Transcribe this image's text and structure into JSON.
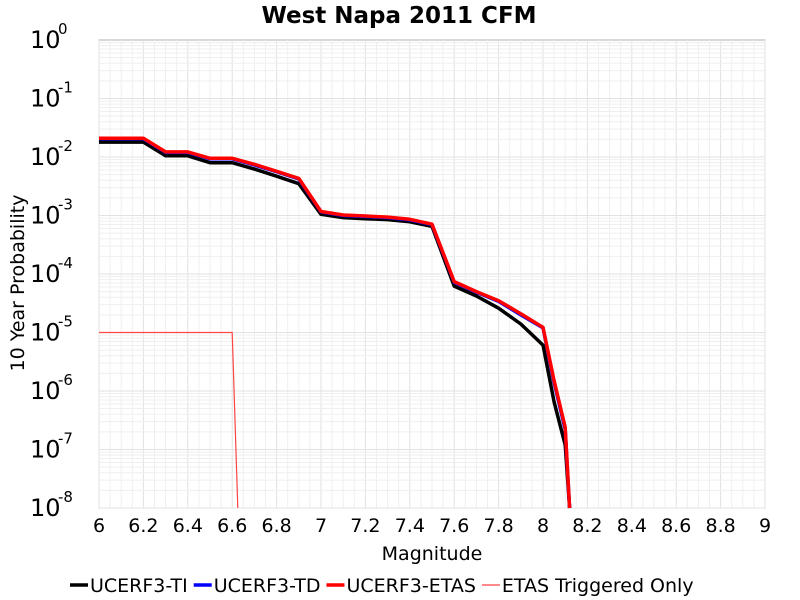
{
  "chart_data": {
    "type": "line",
    "title": "West Napa 2011 CFM",
    "xlabel": "Magnitude",
    "ylabel": "10 Year Probability",
    "x_range": [
      6,
      9
    ],
    "y_range": [
      1e-08,
      1
    ],
    "y_scale": "log",
    "grid": true,
    "legend_position": "bottom",
    "x_ticks": [
      "6",
      "6.2",
      "6.4",
      "6.6",
      "6.8",
      "7",
      "7.2",
      "7.4",
      "7.6",
      "7.8",
      "8",
      "8.2",
      "8.4",
      "8.6",
      "8.8",
      "9"
    ],
    "y_ticks": [
      {
        "base": "10",
        "exp": "0"
      },
      {
        "base": "10",
        "exp": "-1"
      },
      {
        "base": "10",
        "exp": "-2"
      },
      {
        "base": "10",
        "exp": "-3"
      },
      {
        "base": "10",
        "exp": "-4"
      },
      {
        "base": "10",
        "exp": "-5"
      },
      {
        "base": "10",
        "exp": "-6"
      },
      {
        "base": "10",
        "exp": "-7"
      },
      {
        "base": "10",
        "exp": "-8"
      }
    ],
    "series": [
      {
        "name": "UCERF3-TI",
        "color": "#000000",
        "points": [
          [
            6.0,
            0.018
          ],
          [
            6.1,
            0.018
          ],
          [
            6.2,
            0.018
          ],
          [
            6.3,
            0.0105
          ],
          [
            6.4,
            0.0105
          ],
          [
            6.5,
            0.008
          ],
          [
            6.6,
            0.008
          ],
          [
            6.7,
            0.0062
          ],
          [
            6.8,
            0.0047
          ],
          [
            6.9,
            0.0035
          ],
          [
            7.0,
            0.00105
          ],
          [
            7.1,
            0.00092
          ],
          [
            7.2,
            0.00088
          ],
          [
            7.3,
            0.00085
          ],
          [
            7.4,
            0.00078
          ],
          [
            7.5,
            0.00065
          ],
          [
            7.6,
            6.2e-05
          ],
          [
            7.7,
            4.2e-05
          ],
          [
            7.8,
            2.6e-05
          ],
          [
            7.9,
            1.4e-05
          ],
          [
            8.0,
            6.1e-06
          ],
          [
            8.05,
            6.5e-07
          ],
          [
            8.1,
            1.2e-07
          ],
          [
            8.12,
            1e-08
          ]
        ]
      },
      {
        "name": "UCERF3-TD",
        "color": "#0000ff",
        "points": [
          [
            6.0,
            0.0205
          ],
          [
            6.1,
            0.0205
          ],
          [
            6.2,
            0.0205
          ],
          [
            6.3,
            0.012
          ],
          [
            6.4,
            0.012
          ],
          [
            6.5,
            0.0093
          ],
          [
            6.6,
            0.0093
          ],
          [
            6.7,
            0.0073
          ],
          [
            6.8,
            0.0056
          ],
          [
            6.9,
            0.0042
          ],
          [
            7.0,
            0.00115
          ],
          [
            7.1,
            0.001
          ],
          [
            7.2,
            0.00096
          ],
          [
            7.3,
            0.00092
          ],
          [
            7.4,
            0.00084
          ],
          [
            7.5,
            0.0007
          ],
          [
            7.6,
            7.2e-05
          ],
          [
            7.7,
            4.9e-05
          ],
          [
            7.8,
            3.4e-05
          ],
          [
            7.9,
            2e-05
          ],
          [
            8.0,
            1.2e-05
          ],
          [
            8.05,
            1.4e-06
          ],
          [
            8.1,
            2.2e-07
          ],
          [
            8.12,
            1e-08
          ]
        ]
      },
      {
        "name": "UCERF3-ETAS",
        "color": "#ff0000",
        "points": [
          [
            6.0,
            0.021
          ],
          [
            6.1,
            0.021
          ],
          [
            6.2,
            0.021
          ],
          [
            6.3,
            0.0122
          ],
          [
            6.4,
            0.0122
          ],
          [
            6.5,
            0.0095
          ],
          [
            6.6,
            0.0095
          ],
          [
            6.7,
            0.0075
          ],
          [
            6.8,
            0.0057
          ],
          [
            6.9,
            0.0043
          ],
          [
            7.0,
            0.00117
          ],
          [
            7.1,
            0.00102
          ],
          [
            7.2,
            0.00098
          ],
          [
            7.3,
            0.00094
          ],
          [
            7.4,
            0.00086
          ],
          [
            7.5,
            0.00071
          ],
          [
            7.6,
            7.4e-05
          ],
          [
            7.7,
            5e-05
          ],
          [
            7.8,
            3.5e-05
          ],
          [
            7.9,
            2.1e-05
          ],
          [
            8.0,
            1.22e-05
          ],
          [
            8.05,
            1.5e-06
          ],
          [
            8.1,
            2.4e-07
          ],
          [
            8.12,
            1e-08
          ]
        ]
      },
      {
        "name": "ETAS Triggered Only",
        "color": "#ff4444",
        "points": [
          [
            6.0,
            1e-05
          ],
          [
            6.1,
            1e-05
          ],
          [
            6.2,
            1e-05
          ],
          [
            6.3,
            1e-05
          ],
          [
            6.4,
            1e-05
          ],
          [
            6.5,
            1e-05
          ],
          [
            6.6,
            1e-05
          ],
          [
            6.625,
            1e-08
          ]
        ]
      }
    ]
  }
}
